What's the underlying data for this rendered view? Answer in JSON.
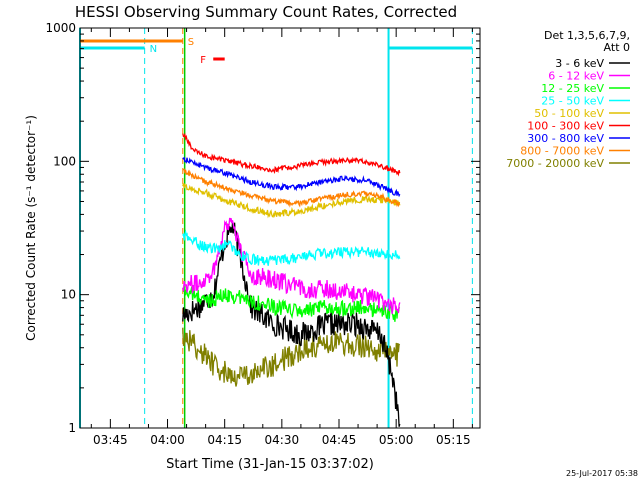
{
  "chart_data": {
    "type": "line",
    "title": "HESSI Observing Summary Count Rates, Corrected",
    "ylabel": "Corrected Count Rate (s⁻¹ detector⁻¹)",
    "xlabel": "Start Time (31-Jan-15 03:37:02)",
    "footer": "25-Jul-2017 05:38",
    "y_scale": "log",
    "ylim": [
      1,
      1000
    ],
    "xlim": [
      "03:37:02",
      "05:22:00"
    ],
    "y_ticks": [
      "1",
      "10",
      "100",
      "1000"
    ],
    "x_ticks": [
      "03:45",
      "04:00",
      "04:15",
      "04:30",
      "04:45",
      "05:00",
      "05:15"
    ],
    "legend": {
      "position": "top-right",
      "header": [
        "Det 1,3,5,6,7,9,",
        "Att 0"
      ],
      "entries": [
        {
          "label": "3 - 6 keV",
          "color": "#000000"
        },
        {
          "label": "6 - 12 keV",
          "color": "#ff00ff"
        },
        {
          "label": "12 - 25 keV",
          "color": "#00ff00"
        },
        {
          "label": "25 - 50 keV",
          "color": "#00ffff"
        },
        {
          "label": "50 - 100 keV",
          "color": "#e0c000"
        },
        {
          "label": "100 - 300 keV",
          "color": "#ff0000"
        },
        {
          "label": "300 - 800 keV",
          "color": "#0000ff"
        },
        {
          "label": "800 - 7000 keV",
          "color": "#ff8000"
        },
        {
          "label": "7000 - 20000 keV",
          "color": "#808000"
        }
      ]
    },
    "flags": [
      {
        "label": "N",
        "color": "#00e5ee"
      },
      {
        "label": "S",
        "color": "#ff8000"
      },
      {
        "label": "F",
        "color": "#ff0000"
      }
    ],
    "series": [
      {
        "name": "3 - 6 keV",
        "color": "#000000",
        "x": [
          "04:04",
          "04:08",
          "04:12",
          "04:15",
          "04:17",
          "04:19",
          "04:22",
          "04:28",
          "04:35",
          "04:42",
          "04:50",
          "04:56",
          "04:59",
          "05:01"
        ],
        "values": [
          7,
          8,
          10,
          25,
          33,
          20,
          8,
          6,
          5,
          6,
          6,
          5,
          2.5,
          1
        ]
      },
      {
        "name": "6 - 12 keV",
        "color": "#ff00ff",
        "x": [
          "04:04",
          "04:08",
          "04:12",
          "04:15",
          "04:17",
          "04:19",
          "04:22",
          "04:28",
          "04:35",
          "04:42",
          "04:50",
          "04:56",
          "05:01"
        ],
        "values": [
          12,
          12,
          15,
          32,
          37,
          22,
          14,
          13,
          11,
          11,
          10,
          9,
          8
        ]
      },
      {
        "name": "12 - 25 keV",
        "color": "#00ff00",
        "x": [
          "04:04",
          "04:10",
          "04:16",
          "04:22",
          "04:28",
          "04:35",
          "04:42",
          "04:50",
          "04:56",
          "05:01"
        ],
        "values": [
          11,
          9,
          10,
          9,
          8,
          7.5,
          8,
          8,
          7.5,
          7
        ]
      },
      {
        "name": "25 - 50 keV",
        "color": "#00ffff",
        "x": [
          "04:04",
          "04:08",
          "04:12",
          "04:16",
          "04:20",
          "04:24",
          "04:30",
          "04:38",
          "04:46",
          "04:52",
          "05:01"
        ],
        "values": [
          28,
          24,
          22,
          24,
          19,
          18,
          18,
          20,
          21,
          21,
          20
        ]
      },
      {
        "name": "50 - 100 keV",
        "color": "#e0c000",
        "x": [
          "04:04",
          "04:10",
          "04:16",
          "04:22",
          "04:28",
          "04:34",
          "04:40",
          "04:46",
          "04:52",
          "04:57",
          "05:01"
        ],
        "values": [
          65,
          58,
          50,
          44,
          40,
          42,
          46,
          50,
          52,
          51,
          48
        ]
      },
      {
        "name": "100 - 300 keV",
        "color": "#ff0000",
        "x": [
          "04:04",
          "04:07",
          "04:10",
          "04:16",
          "04:22",
          "04:28",
          "04:34",
          "04:40",
          "04:46",
          "04:52",
          "04:57",
          "05:01"
        ],
        "values": [
          160,
          120,
          110,
          100,
          92,
          86,
          92,
          98,
          102,
          100,
          90,
          82
        ]
      },
      {
        "name": "300 - 800 keV",
        "color": "#0000ff",
        "x": [
          "04:04",
          "04:10",
          "04:16",
          "04:22",
          "04:28",
          "04:34",
          "04:40",
          "04:46",
          "04:52",
          "04:57",
          "05:01"
        ],
        "values": [
          105,
          90,
          80,
          70,
          64,
          64,
          70,
          74,
          72,
          63,
          56
        ]
      },
      {
        "name": "800 - 7000 keV",
        "color": "#ff8000",
        "x": [
          "04:04",
          "04:10",
          "04:16",
          "04:22",
          "04:28",
          "04:34",
          "04:40",
          "04:46",
          "04:52",
          "04:57",
          "05:01"
        ],
        "values": [
          85,
          70,
          62,
          55,
          50,
          48,
          52,
          56,
          58,
          53,
          48
        ]
      },
      {
        "name": "7000 - 20000 keV",
        "color": "#808000",
        "x": [
          "04:04",
          "04:08",
          "04:12",
          "04:16",
          "04:22",
          "04:28",
          "04:36",
          "04:44",
          "04:52",
          "05:01"
        ],
        "values": [
          5,
          4,
          3,
          2.5,
          2.5,
          3,
          4,
          4.5,
          4,
          3.5
        ]
      }
    ]
  }
}
